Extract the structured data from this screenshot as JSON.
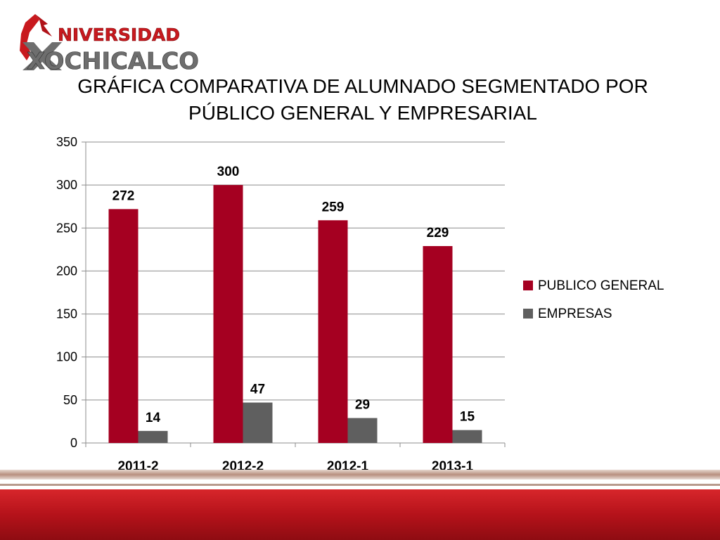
{
  "logo": {
    "text_top": "NIVERSIDAD",
    "text_bottom": "XOCHICALCO"
  },
  "title": {
    "line1": "GRÁFICA COMPARATIVA DE ALUMNADO SEGMENTADO POR",
    "line2": "PÚBLICO GENERAL Y EMPRESARIAL"
  },
  "colors": {
    "series1": "#A50021",
    "series2": "#5F5F5F",
    "grid": "#8C8C8C",
    "footer_red": "#C8191E",
    "footer_band": "#C9A99A"
  },
  "chart_data": {
    "type": "bar",
    "categories": [
      "2011-2",
      "2012-2",
      "2012-1",
      "2013-1"
    ],
    "series": [
      {
        "name": "PUBLICO GENERAL",
        "values": [
          272,
          300,
          259,
          229
        ]
      },
      {
        "name": "EMPRESAS",
        "values": [
          14,
          47,
          29,
          15
        ]
      }
    ],
    "ylim": [
      0,
      350
    ],
    "yticks": [
      0,
      50,
      100,
      150,
      200,
      250,
      300,
      350
    ],
    "grid": true,
    "legend": "right",
    "data_labels": true
  }
}
